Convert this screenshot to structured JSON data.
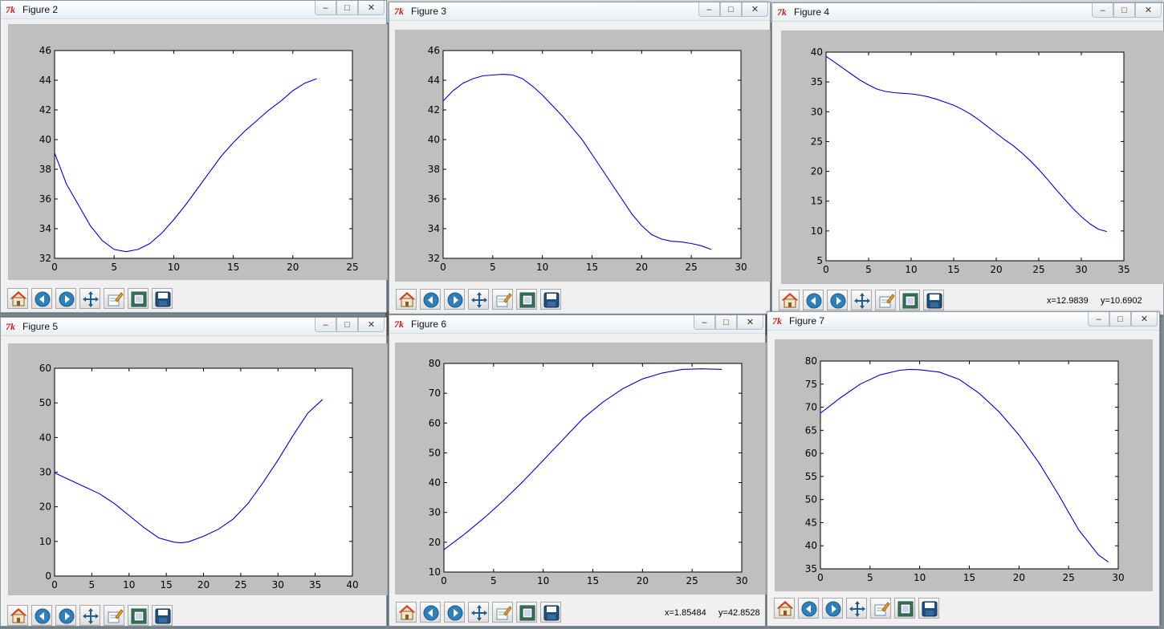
{
  "windows": [
    {
      "title": "Figure 2",
      "coords": "",
      "chart_data": {
        "type": "line",
        "title": "",
        "xlabel": "",
        "ylabel": "",
        "xlim": [
          0,
          25
        ],
        "ylim": [
          32,
          46
        ],
        "xticks": [
          0,
          5,
          10,
          15,
          20,
          25
        ],
        "yticks": [
          32,
          34,
          36,
          38,
          40,
          42,
          44,
          46
        ],
        "grid": false,
        "series": [
          {
            "color": "#0000cc",
            "x": [
              0,
              1,
              2,
              3,
              4,
              5,
              6,
              7,
              8,
              9,
              10,
              11,
              12,
              13,
              14,
              15,
              16,
              17,
              18,
              19,
              20,
              21,
              22
            ],
            "y": [
              39.1,
              37.0,
              35.6,
              34.2,
              33.2,
              32.6,
              32.45,
              32.6,
              33.0,
              33.7,
              34.6,
              35.6,
              36.7,
              37.8,
              38.9,
              39.8,
              40.6,
              41.3,
              42.0,
              42.6,
              43.3,
              43.8,
              44.1
            ]
          }
        ]
      }
    },
    {
      "title": "Figure 3",
      "coords": "",
      "chart_data": {
        "type": "line",
        "title": "",
        "xlabel": "",
        "ylabel": "",
        "xlim": [
          0,
          30
        ],
        "ylim": [
          32,
          46
        ],
        "xticks": [
          0,
          5,
          10,
          15,
          20,
          25,
          30
        ],
        "yticks": [
          32,
          34,
          36,
          38,
          40,
          42,
          44,
          46
        ],
        "grid": false,
        "series": [
          {
            "color": "#0000cc",
            "x": [
              0,
              1,
              2,
              3,
              4,
              5,
              6,
              7,
              8,
              9,
              10,
              11,
              12,
              13,
              14,
              15,
              16,
              17,
              18,
              19,
              20,
              21,
              22,
              23,
              24,
              25,
              26,
              27
            ],
            "y": [
              42.6,
              43.3,
              43.8,
              44.1,
              44.3,
              44.35,
              44.4,
              44.35,
              44.1,
              43.6,
              43.0,
              42.3,
              41.6,
              40.8,
              40.0,
              39.0,
              38.0,
              37.0,
              36.0,
              35.0,
              34.2,
              33.6,
              33.3,
              33.15,
              33.1,
              33.0,
              32.85,
              32.6
            ]
          }
        ]
      }
    },
    {
      "title": "Figure 4",
      "coords": "x=12.9839     y=10.6902",
      "chart_data": {
        "type": "line",
        "title": "",
        "xlabel": "",
        "ylabel": "",
        "xlim": [
          0,
          35
        ],
        "ylim": [
          5,
          40
        ],
        "xticks": [
          0,
          5,
          10,
          15,
          20,
          25,
          30,
          35
        ],
        "yticks": [
          5,
          10,
          15,
          20,
          25,
          30,
          35,
          40
        ],
        "grid": false,
        "series": [
          {
            "color": "#0000cc",
            "x": [
              0,
              1,
              2,
              3,
              4,
              5,
              6,
              7,
              8,
              9,
              10,
              11,
              12,
              13,
              14,
              15,
              16,
              17,
              18,
              19,
              20,
              21,
              22,
              23,
              24,
              25,
              26,
              27,
              28,
              29,
              30,
              31,
              32,
              33
            ],
            "y": [
              39.3,
              38.3,
              37.3,
              36.3,
              35.3,
              34.5,
              33.8,
              33.4,
              33.2,
              33.1,
              33.0,
              32.8,
              32.5,
              32.1,
              31.6,
              31.1,
              30.4,
              29.6,
              28.6,
              27.5,
              26.4,
              25.3,
              24.3,
              23.1,
              21.8,
              20.3,
              18.7,
              17.0,
              15.4,
              13.8,
              12.4,
              11.2,
              10.3,
              9.9
            ]
          }
        ]
      }
    },
    {
      "title": "Figure 5",
      "coords": "",
      "chart_data": {
        "type": "line",
        "title": "",
        "xlabel": "",
        "ylabel": "",
        "xlim": [
          0,
          40
        ],
        "ylim": [
          0,
          60
        ],
        "xticks": [
          0,
          5,
          10,
          15,
          20,
          25,
          30,
          35,
          40
        ],
        "yticks": [
          0,
          10,
          20,
          30,
          40,
          50,
          60
        ],
        "grid": false,
        "series": [
          {
            "color": "#0000cc",
            "x": [
              0,
              2,
              4,
              6,
              8,
              10,
              12,
              14,
              16,
              17,
              18,
              20,
              22,
              24,
              26,
              28,
              30,
              32,
              34,
              36
            ],
            "y": [
              29.8,
              27.8,
              25.8,
              23.8,
              21.0,
              17.5,
              14.0,
              11.0,
              9.8,
              9.6,
              9.9,
              11.5,
              13.5,
              16.5,
              21.0,
              27.0,
              33.5,
              40.5,
              47.0,
              51.0
            ]
          }
        ]
      }
    },
    {
      "title": "Figure 6",
      "coords": "x=1.85484     y=42.8528",
      "chart_data": {
        "type": "line",
        "title": "",
        "xlabel": "",
        "ylabel": "",
        "xlim": [
          0,
          30
        ],
        "ylim": [
          10,
          80
        ],
        "xticks": [
          0,
          5,
          10,
          15,
          20,
          25,
          30
        ],
        "yticks": [
          10,
          20,
          30,
          40,
          50,
          60,
          70,
          80
        ],
        "grid": false,
        "series": [
          {
            "color": "#0000cc",
            "x": [
              0,
              2,
              4,
              6,
              8,
              10,
              12,
              14,
              16,
              18,
              20,
              22,
              24,
              26,
              28
            ],
            "y": [
              17.5,
              22.5,
              28.0,
              34.0,
              40.5,
              47.5,
              54.5,
              61.5,
              67.0,
              71.5,
              74.8,
              76.8,
              78.0,
              78.2,
              78.0
            ]
          }
        ]
      }
    },
    {
      "title": "Figure 7",
      "coords": "",
      "chart_data": {
        "type": "line",
        "title": "",
        "xlabel": "",
        "ylabel": "",
        "xlim": [
          0,
          30
        ],
        "ylim": [
          35,
          80
        ],
        "xticks": [
          0,
          5,
          10,
          15,
          20,
          25,
          30
        ],
        "yticks": [
          35,
          40,
          45,
          50,
          55,
          60,
          65,
          70,
          75,
          80
        ],
        "grid": false,
        "series": [
          {
            "color": "#0000cc",
            "x": [
              0,
              2,
              4,
              6,
              8,
              9,
              10,
              12,
              14,
              16,
              18,
              20,
              22,
              24,
              26,
              28,
              29
            ],
            "y": [
              68.7,
              72.0,
              75.0,
              77.0,
              78.0,
              78.2,
              78.1,
              77.6,
              76.0,
              73.0,
              69.0,
              64.0,
              58.0,
              51.0,
              43.5,
              38.0,
              36.5
            ]
          }
        ]
      }
    }
  ],
  "toolbar_buttons": [
    "home-icon",
    "back-icon",
    "forward-icon",
    "pan-icon",
    "zoom-icon",
    "configure-subplots-icon",
    "save-icon"
  ],
  "colors": {
    "plot_bg": "#bfbfbf",
    "line": "#0000cc",
    "tk_icon": "#c8201e"
  }
}
